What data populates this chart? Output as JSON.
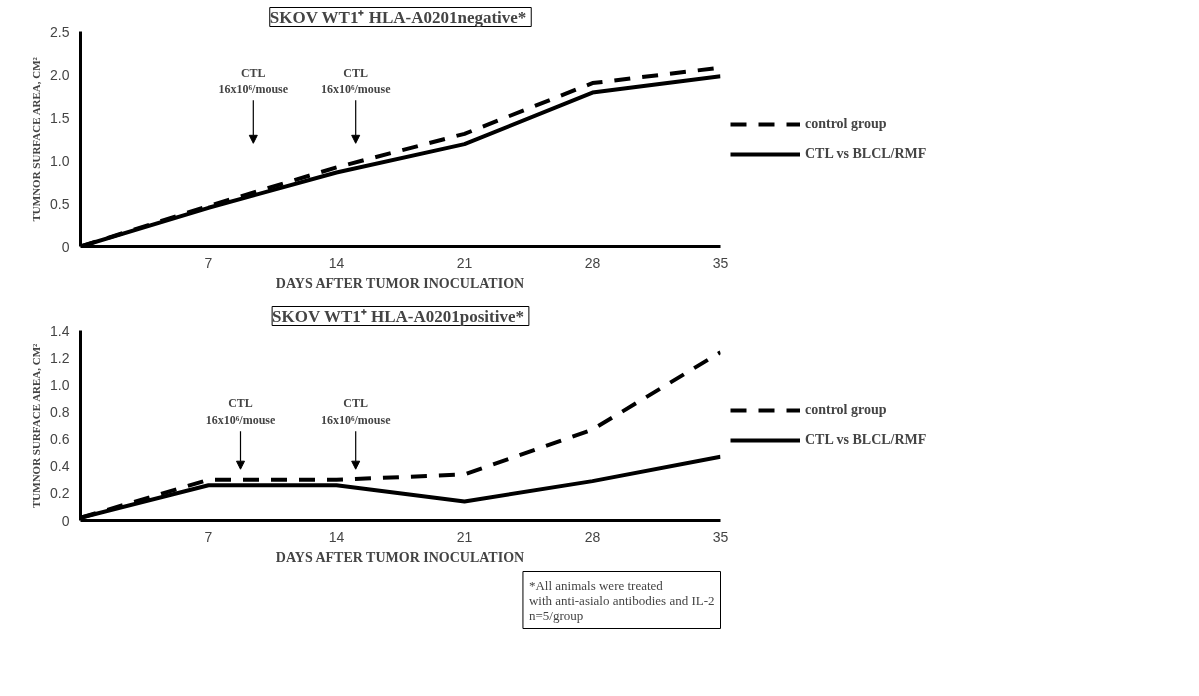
{
  "chart_data": [
    {
      "type": "line",
      "title": "SKOV  WT1⁺ HLA-A0201negative*",
      "xlabel": "DAYS AFTER TUMOR INOCULATION",
      "ylabel": "TUMNOR SURFACE AREA, CM²",
      "x": [
        0,
        7,
        14,
        21,
        28,
        35
      ],
      "series": [
        {
          "name": "control group",
          "color": "#000000",
          "line_style": "dashed",
          "values": [
            0,
            0.47,
            0.92,
            1.31,
            1.9,
            2.08
          ]
        },
        {
          "name": "CTL vs BLCL/RMF",
          "color": "#000000",
          "line_style": "solid",
          "values": [
            0,
            0.45,
            0.86,
            1.19,
            1.79,
            1.98
          ]
        }
      ],
      "xlim": [
        0,
        35
      ],
      "xticks": [
        7,
        14,
        21,
        28,
        35
      ],
      "ylim": [
        0,
        2.5
      ],
      "yticks": [
        0,
        {
          "value": 0.5,
          "label": "0.5"
        },
        {
          "value": 1,
          "label": "1.0"
        },
        {
          "value": 1.5,
          "label": "1.5"
        },
        {
          "value": 2,
          "label": "2.0"
        },
        {
          "value": 2.5,
          "label": "2.5"
        }
      ],
      "annotations": [
        "CTL\n16x10⁶/mouse",
        "CTL\n16x10⁶/mouse"
      ],
      "legend": "right",
      "grid": false,
      "marker": "none"
    },
    {
      "type": "line",
      "title": "SKOV  WT1⁺ HLA-A0201positive*",
      "xlabel": "DAYS AFTER TUMOR INOCULATION",
      "ylabel": "TUMNOR SURFACE AREA, CM²",
      "x": [
        0,
        7,
        14,
        21,
        28,
        35
      ],
      "series": [
        {
          "name": "control group",
          "color": "#000000",
          "line_style": "dashed",
          "values": [
            0.02,
            0.3,
            0.3,
            0.34,
            0.67,
            1.24
          ]
        },
        {
          "name": "CTL vs BLCL/RMF",
          "color": "#000000",
          "line_style": "solid",
          "values": [
            0.02,
            0.26,
            0.26,
            0.14,
            0.29,
            0.47
          ]
        }
      ],
      "xlim": [
        0,
        35
      ],
      "xticks": [
        7,
        14,
        21,
        28,
        35
      ],
      "ylim": [
        0,
        1.4
      ],
      "yticks": [
        0,
        {
          "value": 0.2,
          "label": "0.2"
        },
        {
          "value": 0.4,
          "label": "0.4"
        },
        {
          "value": 0.6,
          "label": "0.6"
        },
        {
          "value": 0.8,
          "label": "0.8"
        },
        {
          "value": 1,
          "label": "1.0"
        },
        {
          "value": 1.2,
          "label": "1.2"
        },
        {
          "value": 1.4,
          "label": "1.4"
        }
      ],
      "annotations": [
        "CTL\n16x10⁶/mouse",
        "CTL\n16x10⁶/mouse",
        "*All animals were treated\nwith anti-asialo antibodies and IL-2\nn=5/group"
      ],
      "legend": "right",
      "grid": false,
      "marker": "none"
    }
  ]
}
